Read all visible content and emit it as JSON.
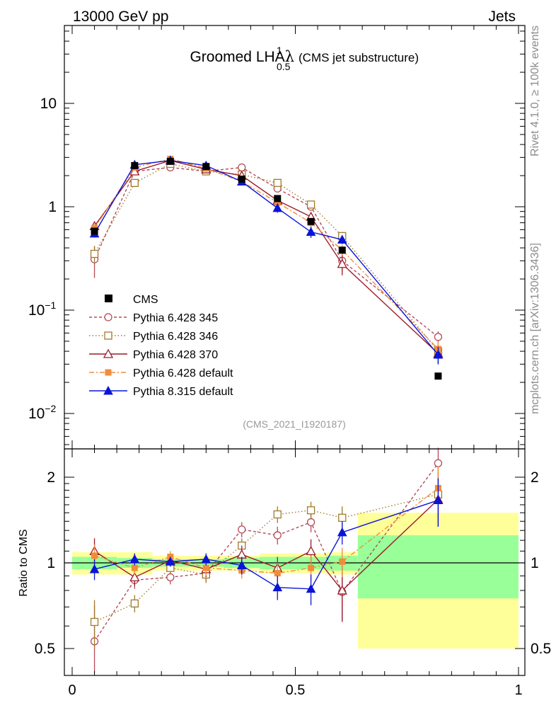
{
  "header": {
    "left": "13000 GeV pp",
    "right": "Jets"
  },
  "side_labels": {
    "top": "Rivet 4.1.0, ≥ 100k events",
    "bottom": "mcplots.cern.ch [arXiv:1306.3436]"
  },
  "chart_data": {
    "type": "line",
    "title": "Groomed LHA",
    "title_symbol": "λ",
    "title_sup": "1",
    "title_sub": "0.5",
    "title_note": "(CMS jet substructure)",
    "analysis_tag": "(CMS_2021_I1920187)",
    "xlim": [
      0,
      1
    ],
    "x_ticks": [
      "0",
      "0.5",
      "1"
    ],
    "main_ylim": [
      0.0045,
      60
    ],
    "main_yscale": "log",
    "main_y_ticks": [
      {
        "value": 10,
        "base": "10",
        "exp": ""
      },
      {
        "value": 1,
        "base": "1",
        "exp": ""
      },
      {
        "value": 0.1,
        "base": "10",
        "exp": "−1"
      },
      {
        "value": 0.01,
        "base": "10",
        "exp": "−2"
      }
    ],
    "ratio_ylabel": "Ratio to CMS",
    "ratio_ylim": [
      0.4,
      2.3
    ],
    "ratio_y_ticks": [
      "0.5",
      "1",
      "2"
    ],
    "bins": [
      [
        0.0,
        0.1
      ],
      [
        0.1,
        0.18
      ],
      [
        0.18,
        0.26
      ],
      [
        0.26,
        0.34
      ],
      [
        0.34,
        0.42
      ],
      [
        0.42,
        0.5
      ],
      [
        0.5,
        0.57
      ],
      [
        0.57,
        0.64
      ],
      [
        0.64,
        1.0
      ]
    ],
    "x": [
      0.05,
      0.14,
      0.22,
      0.3,
      0.38,
      0.46,
      0.535,
      0.605,
      0.82
    ],
    "data": {
      "name": "CMS",
      "values": [
        0.58,
        2.5,
        2.75,
        2.45,
        1.85,
        1.2,
        0.72,
        0.38,
        0.023
      ],
      "band_green": [
        0.05,
        0.04,
        0.03,
        0.03,
        0.04,
        0.05,
        0.05,
        0.06,
        0.25
      ],
      "band_yellow": [
        0.09,
        0.09,
        0.06,
        0.06,
        0.06,
        0.08,
        0.08,
        0.09,
        0.5
      ]
    },
    "series": [
      {
        "name": "Pythia 6.428 345",
        "color": "#b54a5a",
        "dash": "4,3",
        "marker": "circle-open",
        "values": [
          0.31,
          2.2,
          2.4,
          2.2,
          2.4,
          1.5,
          1.0,
          0.3,
          0.055
        ],
        "ratio": [
          0.53,
          0.87,
          0.89,
          0.92,
          1.31,
          1.25,
          1.39,
          0.79,
          2.24
        ],
        "ratio_err": [
          0.18,
          0.06,
          0.05,
          0.06,
          0.08,
          0.09,
          0.11,
          0.16,
          0.3
        ]
      },
      {
        "name": "Pythia 6.428 346",
        "color": "#a37a2c",
        "dash": "1.5,3",
        "marker": "square-open",
        "values": [
          0.35,
          1.7,
          2.6,
          2.2,
          2.05,
          1.7,
          1.05,
          0.52,
          0.04
        ],
        "ratio": [
          0.62,
          0.72,
          0.96,
          0.91,
          1.15,
          1.48,
          1.53,
          1.44,
          1.74
        ],
        "ratio_err": [
          0.12,
          0.05,
          0.05,
          0.06,
          0.07,
          0.1,
          0.11,
          0.14,
          0.35
        ]
      },
      {
        "name": "Pythia 6.428 370",
        "color": "#9b1b2a",
        "dash": "",
        "marker": "triangle-open",
        "values": [
          0.65,
          2.2,
          2.8,
          2.3,
          2.0,
          1.15,
          0.8,
          0.28,
          0.038
        ],
        "ratio": [
          1.1,
          0.89,
          1.02,
          0.95,
          1.07,
          0.96,
          1.1,
          0.8,
          1.67
        ],
        "ratio_err": [
          0.12,
          0.06,
          0.05,
          0.06,
          0.08,
          0.09,
          0.11,
          0.18,
          0.33
        ]
      },
      {
        "name": "Pythia 6.428 default",
        "color": "#f08c3c",
        "dash": "7,3,2,3",
        "marker": "square-filled",
        "values": [
          0.62,
          2.4,
          2.9,
          2.35,
          1.75,
          1.1,
          0.7,
          0.38,
          0.042
        ],
        "ratio": [
          1.06,
          0.96,
          1.05,
          0.96,
          0.94,
          0.92,
          0.96,
          1.01,
          1.83
        ],
        "ratio_err": [
          0.1,
          0.05,
          0.05,
          0.06,
          0.06,
          0.08,
          0.1,
          0.12,
          0.35
        ]
      },
      {
        "name": "Pythia 8.315 default",
        "color": "#0a14d8",
        "dash": "",
        "marker": "triangle-filled",
        "values": [
          0.55,
          2.55,
          2.8,
          2.5,
          1.75,
          0.97,
          0.57,
          0.48,
          0.037
        ],
        "ratio": [
          0.95,
          1.03,
          1.01,
          1.03,
          0.98,
          0.82,
          0.81,
          1.28,
          1.66
        ],
        "ratio_err": [
          0.08,
          0.05,
          0.04,
          0.05,
          0.07,
          0.08,
          0.1,
          0.12,
          0.32
        ]
      }
    ]
  }
}
